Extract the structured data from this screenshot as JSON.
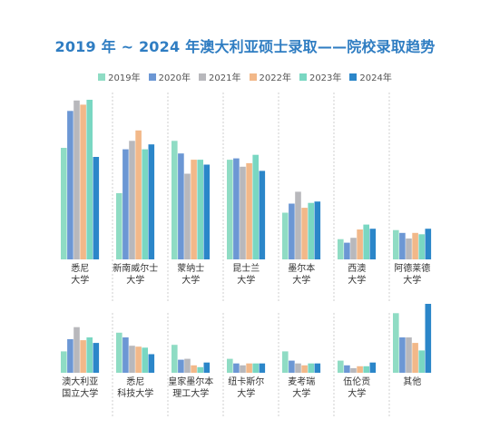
{
  "chart_data": {
    "type": "bar",
    "title": "2019 年 ~ 2024 年澳大利亚硕士录取——院校录取趋势",
    "legend": [
      "2019年",
      "2020年",
      "2021年",
      "2022年",
      "2023年",
      "2024年"
    ],
    "colors": [
      "#8fdcc4",
      "#6c97d4",
      "#b8b8bc",
      "#f2b889",
      "#79d7c2",
      "#2b86c9"
    ],
    "rows": [
      {
        "categories": [
          {
            "label": [
              "悉尼",
              "大学"
            ],
            "values": [
              160,
              213,
              228,
              222,
              229,
              147
            ]
          },
          {
            "label": [
              "新南威尔士",
              "大学"
            ],
            "values": [
              95,
              158,
              170,
              185,
              158,
              165
            ]
          },
          {
            "label": [
              "蒙纳士",
              "大学"
            ],
            "values": [
              170,
              152,
              123,
              143,
              143,
              136
            ]
          },
          {
            "label": [
              "昆士兰",
              "大学"
            ],
            "values": [
              143,
              145,
              133,
              138,
              150,
              127
            ]
          },
          {
            "label": [
              "墨尔本",
              "大学"
            ],
            "values": [
              67,
              80,
              97,
              74,
              81,
              83
            ]
          },
          {
            "label": [
              "西澳",
              "大学"
            ],
            "values": [
              29,
              24,
              31,
              43,
              50,
              44
            ]
          },
          {
            "label": [
              "阿德莱德",
              "大学"
            ],
            "values": [
              42,
              38,
              30,
              38,
              36,
              44
            ]
          }
        ]
      },
      {
        "categories": [
          {
            "label": [
              "澳大利亚",
              "国立大学"
            ],
            "values": [
              23,
              36,
              49,
              35,
              38,
              32
            ]
          },
          {
            "label": [
              "悉尼",
              "科技大学"
            ],
            "values": [
              43,
              38,
              29,
              28,
              27,
              20
            ]
          },
          {
            "label": [
              "皇家墨尔本",
              "理工大学"
            ],
            "values": [
              30,
              14,
              15,
              8,
              6,
              11
            ]
          },
          {
            "label": [
              "纽卡斯尔",
              "大学"
            ],
            "values": [
              15,
              10,
              8,
              10,
              10,
              10
            ]
          },
          {
            "label": [
              "麦考瑞",
              "大学"
            ],
            "values": [
              23,
              13,
              10,
              8,
              10,
              10
            ]
          },
          {
            "label": [
              "伍伦贡",
              "大学"
            ],
            "values": [
              13,
              8,
              5,
              7,
              7,
              11
            ]
          },
          {
            "label": [
              "其他"
            ],
            "values": [
              64,
              38,
              38,
              32,
              24,
              74
            ]
          }
        ]
      }
    ]
  }
}
